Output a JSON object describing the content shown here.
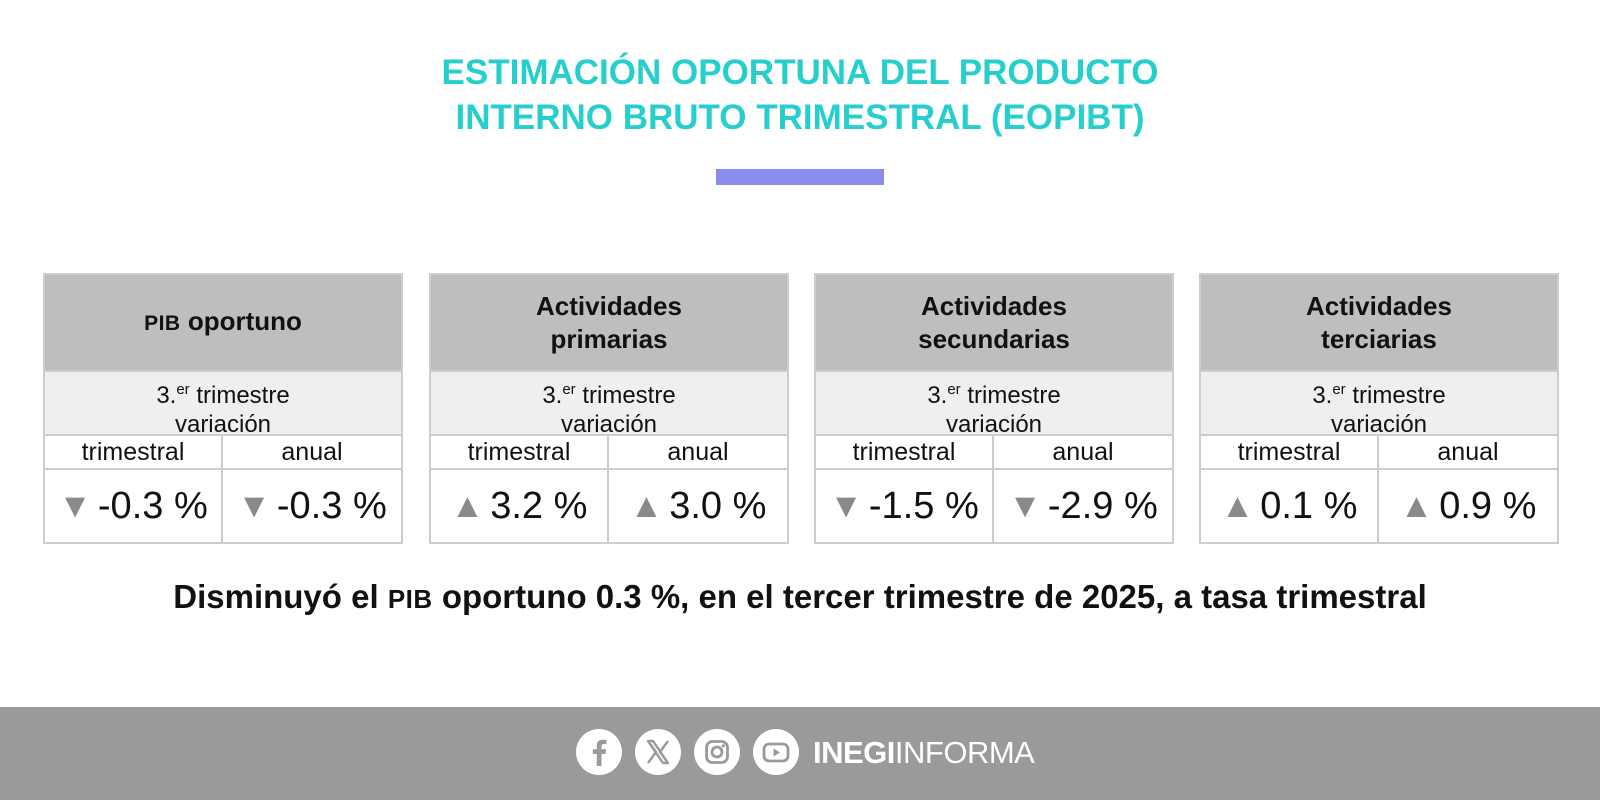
{
  "title": {
    "line1": "ESTIMACIÓN OPORTUNA DEL PRODUCTO",
    "line2": "INTERNO BRUTO TRIMESTRAL (EOPIBT)"
  },
  "colors": {
    "title": "#27cfcc",
    "accent_bar": "#8a8ded",
    "header_bg": "#bebebe",
    "subheader_bg": "#efefef",
    "footer_bg": "#9a9a9a",
    "arrow": "#8a8a8a"
  },
  "cards": [
    {
      "title_prefix": "PIB",
      "title_line1": "oportuno",
      "title_line2": "",
      "period": "3.",
      "period_ord": "er",
      "period_word": "trimestre",
      "variation": "variación",
      "col1": "trimestral",
      "col2": "anual",
      "val1_arrow": "▼",
      "val1": "-0.3 %",
      "val2_arrow": "▼",
      "val2": "-0.3 %"
    },
    {
      "title_line1": "Actividades",
      "title_line2": "primarias",
      "period": "3.",
      "period_ord": "er",
      "period_word": "trimestre",
      "variation": "variación",
      "col1": "trimestral",
      "col2": "anual",
      "val1_arrow": "▲",
      "val1": "3.2 %",
      "val2_arrow": "▲",
      "val2": "3.0 %"
    },
    {
      "title_line1": "Actividades",
      "title_line2": "secundarias",
      "period": "3.",
      "period_ord": "er",
      "period_word": "trimestre",
      "variation": "variación",
      "col1": "trimestral",
      "col2": "anual",
      "val1_arrow": "▼",
      "val1": "-1.5 %",
      "val2_arrow": "▼",
      "val2": "-2.9 %"
    },
    {
      "title_line1": "Actividades",
      "title_line2": "terciarias",
      "period": "3.",
      "period_ord": "er",
      "period_word": "trimestre",
      "variation": "variación",
      "col1": "trimestral",
      "col2": "anual",
      "val1_arrow": "▲",
      "val1": "0.1 %",
      "val2_arrow": "▲",
      "val2": "0.9 %"
    }
  ],
  "headline": {
    "before": "Disminuyó el ",
    "acronym": "PIB",
    "after": " oportuno 0.3 %, en el tercer trimestre de 2025, a tasa trimestral"
  },
  "footer": {
    "icons": [
      "facebook-icon",
      "x-icon",
      "instagram-icon",
      "youtube-icon"
    ],
    "brand_bold": "INEGI",
    "brand_light": "INFORMA"
  }
}
